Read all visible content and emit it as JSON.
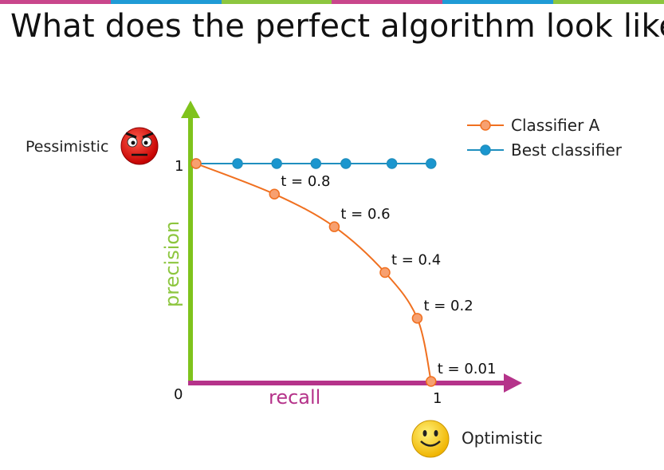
{
  "title": "What does the perfect algorithm look like?",
  "top_bar_colors": [
    "#c9468c",
    "#1f9bd6",
    "#8dc63f",
    "#c9468c",
    "#1f9bd6",
    "#8dc63f"
  ],
  "chart_data": {
    "type": "line",
    "xlabel": "recall",
    "ylabel": "precision",
    "xlim": [
      0,
      1
    ],
    "ylim": [
      0,
      1
    ],
    "x_tick_labels": {
      "origin": "0",
      "max": "1"
    },
    "y_tick_labels": {
      "max": "1"
    },
    "legend_position": "top-right",
    "series": [
      {
        "name": "Classifier A",
        "color": "#f07020",
        "marker_fill": "#f7a070",
        "points": [
          {
            "x": 0.0,
            "y": 1.0,
            "label": ""
          },
          {
            "x": 0.34,
            "y": 0.86,
            "label": "t = 0.8"
          },
          {
            "x": 0.6,
            "y": 0.71,
            "label": "t = 0.6"
          },
          {
            "x": 0.82,
            "y": 0.5,
            "label": "t = 0.4"
          },
          {
            "x": 0.96,
            "y": 0.29,
            "label": "t = 0.2"
          },
          {
            "x": 1.02,
            "y": 0.0,
            "label": "t = 0.01"
          }
        ]
      },
      {
        "name": "Best classifier",
        "color": "#1f8fbf",
        "marker_fill": "#1a96cf",
        "points": [
          {
            "x": 0.0,
            "y": 1.0
          },
          {
            "x": 0.18,
            "y": 1.0
          },
          {
            "x": 0.35,
            "y": 1.0
          },
          {
            "x": 0.52,
            "y": 1.0
          },
          {
            "x": 0.65,
            "y": 1.0
          },
          {
            "x": 0.85,
            "y": 1.0
          },
          {
            "x": 1.02,
            "y": 1.0
          }
        ]
      }
    ],
    "annotations": {
      "pessimistic": "Pessimistic",
      "optimistic": "Optimistic"
    },
    "axis_colors": {
      "x": "#b5338a",
      "y": "#7fc31c"
    }
  }
}
